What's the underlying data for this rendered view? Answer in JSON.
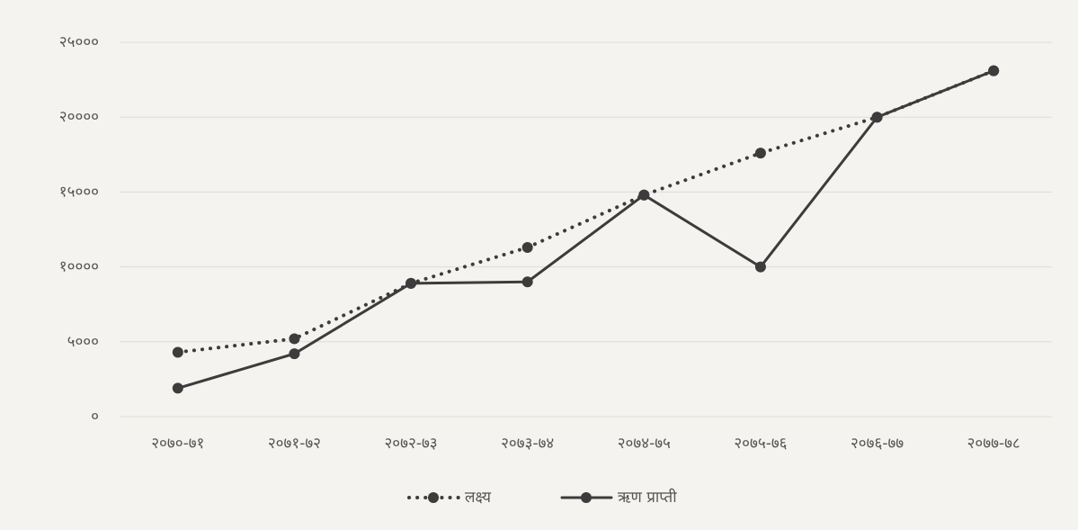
{
  "chart_data": {
    "type": "line",
    "categories": [
      "२०७०-७१",
      "२०७१-७२",
      "२०७२-७३",
      "२०७३-७४",
      "२०७४-७५",
      "२०७५-७६",
      "२०७६-७७",
      "२०७७-७८"
    ],
    "series": [
      {
        "name": "लक्ष्य",
        "color": "#3c3c3c",
        "dash": "dotted",
        "values": [
          4300,
          5200,
          8900,
          11300,
          14800,
          17600,
          20000,
          23100
        ]
      },
      {
        "name": "ऋण प्राप्ती",
        "color": "#3c3c3c",
        "dash": "solid",
        "values": [
          1900,
          4200,
          8900,
          9000,
          14800,
          10000,
          20000,
          23100
        ]
      }
    ],
    "ylim": [
      0,
      25000
    ],
    "yticks": [
      {
        "value": 0,
        "label": "०"
      },
      {
        "value": 5000,
        "label": "५०००"
      },
      {
        "value": 10000,
        "label": "१००००"
      },
      {
        "value": 15000,
        "label": "१५०००"
      },
      {
        "value": 20000,
        "label": "२००००"
      },
      {
        "value": 25000,
        "label": "२५०००"
      }
    ],
    "grid": true,
    "legend": "bottom"
  }
}
